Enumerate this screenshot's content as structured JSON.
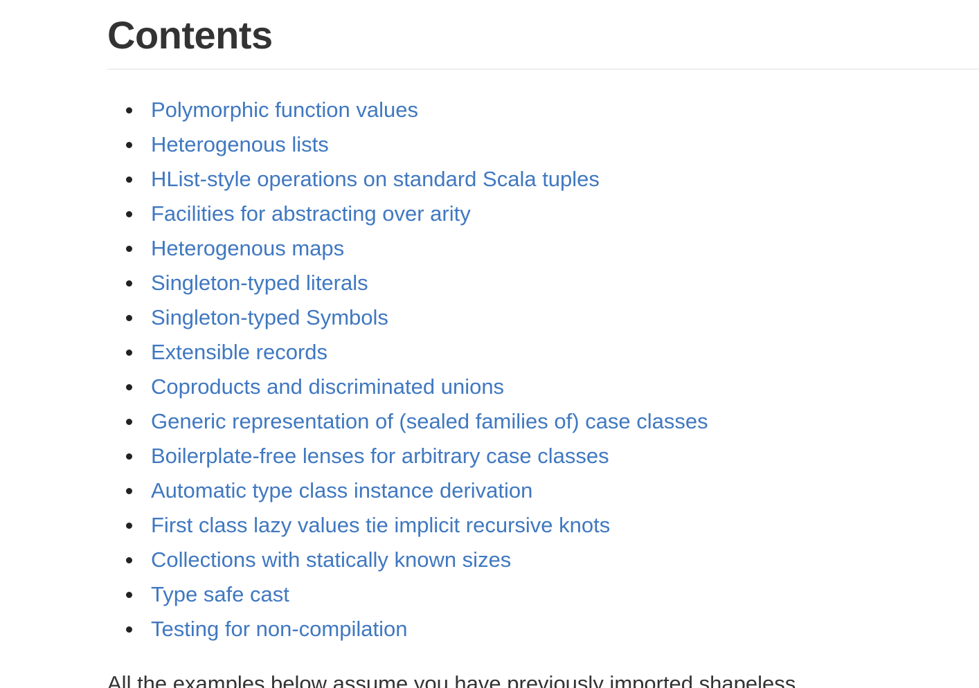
{
  "heading": "Contents",
  "toc": [
    {
      "label": "Polymorphic function values"
    },
    {
      "label": "Heterogenous lists"
    },
    {
      "label": "HList-style operations on standard Scala tuples"
    },
    {
      "label": "Facilities for abstracting over arity"
    },
    {
      "label": "Heterogenous maps"
    },
    {
      "label": "Singleton-typed literals"
    },
    {
      "label": "Singleton-typed Symbols"
    },
    {
      "label": "Extensible records"
    },
    {
      "label": "Coproducts and discriminated unions"
    },
    {
      "label": "Generic representation of (sealed families of) case classes"
    },
    {
      "label": "Boilerplate-free lenses for arbitrary case classes"
    },
    {
      "label": "Automatic type class instance derivation"
    },
    {
      "label": "First class lazy values tie implicit recursive knots"
    },
    {
      "label": "Collections with statically known sizes"
    },
    {
      "label": "Type safe cast"
    },
    {
      "label": "Testing for non-compilation"
    }
  ],
  "intro_text": "All the examples below assume you have previously imported shapeless",
  "colors": {
    "link": "#4078c0",
    "heading": "#333333",
    "rule": "#eeeeee"
  }
}
